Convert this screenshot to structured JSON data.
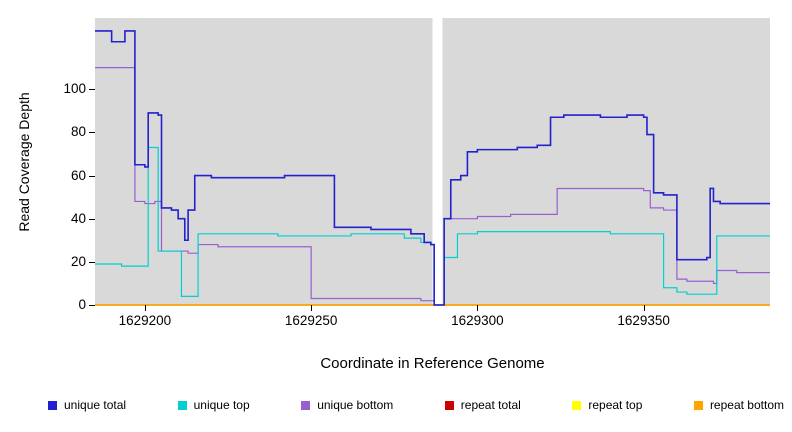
{
  "chart_data": {
    "type": "line",
    "subtype": "step",
    "title": "",
    "xlabel": "Coordinate in Reference Genome",
    "ylabel": "Read Coverage Depth",
    "xlim": [
      1629185,
      1629388
    ],
    "ylim": [
      0,
      133
    ],
    "x_ticks": [
      1629200,
      1629250,
      1629300,
      1629350
    ],
    "y_ticks": [
      0,
      20,
      40,
      60,
      80,
      100
    ],
    "plot_bg": "#d9d9d9",
    "grid": false,
    "gap_region": [
      1629286.5,
      1629289.5
    ],
    "legend_position": "bottom",
    "series": [
      {
        "name": "repeat total",
        "color": "#cc0000",
        "width": 1.2,
        "points": [
          [
            1629185,
            0
          ],
          [
            1629388,
            0
          ]
        ]
      },
      {
        "name": "repeat top",
        "color": "#ffff00",
        "width": 1.2,
        "points": [
          [
            1629185,
            0
          ],
          [
            1629388,
            0
          ]
        ]
      },
      {
        "name": "repeat bottom",
        "color": "#ffa500",
        "width": 1.5,
        "points": [
          [
            1629185,
            0
          ],
          [
            1629388,
            0
          ]
        ]
      },
      {
        "name": "unique bottom",
        "color": "#9a5fce",
        "width": 1.2,
        "points": [
          [
            1629185,
            110
          ],
          [
            1629197,
            48
          ],
          [
            1629200,
            47
          ],
          [
            1629203,
            48
          ],
          [
            1629205,
            25
          ],
          [
            1629213,
            24
          ],
          [
            1629216,
            28
          ],
          [
            1629222,
            27
          ],
          [
            1629249,
            27
          ],
          [
            1629250,
            3
          ],
          [
            1629270,
            3
          ],
          [
            1629283,
            2
          ],
          [
            1629287,
            0
          ],
          [
            1629289,
            0
          ],
          [
            1629290,
            40
          ],
          [
            1629296,
            40
          ],
          [
            1629300,
            41
          ],
          [
            1629310,
            42
          ],
          [
            1629322,
            42
          ],
          [
            1629324,
            54
          ],
          [
            1629340,
            54
          ],
          [
            1629350,
            53
          ],
          [
            1629352,
            45
          ],
          [
            1629356,
            44
          ],
          [
            1629360,
            12
          ],
          [
            1629363,
            11
          ],
          [
            1629371,
            10
          ],
          [
            1629372,
            16
          ],
          [
            1629378,
            15
          ],
          [
            1629388,
            15
          ]
        ]
      },
      {
        "name": "unique top",
        "color": "#00d0d0",
        "width": 1.2,
        "points": [
          [
            1629185,
            19
          ],
          [
            1629193,
            18
          ],
          [
            1629201,
            73
          ],
          [
            1629204,
            25
          ],
          [
            1629211,
            4
          ],
          [
            1629216,
            33
          ],
          [
            1629240,
            32
          ],
          [
            1629262,
            33
          ],
          [
            1629278,
            31
          ],
          [
            1629283,
            29
          ],
          [
            1629286,
            28
          ],
          [
            1629287,
            0
          ],
          [
            1629289,
            0
          ],
          [
            1629290,
            22
          ],
          [
            1629294,
            33
          ],
          [
            1629300,
            34
          ],
          [
            1629330,
            34
          ],
          [
            1629340,
            33
          ],
          [
            1629352,
            33
          ],
          [
            1629356,
            8
          ],
          [
            1629360,
            6
          ],
          [
            1629363,
            5
          ],
          [
            1629371,
            5
          ],
          [
            1629372,
            32
          ],
          [
            1629388,
            32
          ]
        ]
      },
      {
        "name": "unique total",
        "color": "#2222cc",
        "width": 1.6,
        "points": [
          [
            1629185,
            127
          ],
          [
            1629190,
            122
          ],
          [
            1629194,
            127
          ],
          [
            1629197,
            65
          ],
          [
            1629200,
            64
          ],
          [
            1629201,
            89
          ],
          [
            1629204,
            88
          ],
          [
            1629205,
            45
          ],
          [
            1629208,
            44
          ],
          [
            1629210,
            40
          ],
          [
            1629212,
            30
          ],
          [
            1629213,
            44
          ],
          [
            1629215,
            60
          ],
          [
            1629220,
            59
          ],
          [
            1629242,
            60
          ],
          [
            1629257,
            36
          ],
          [
            1629268,
            35
          ],
          [
            1629280,
            33
          ],
          [
            1629284,
            29
          ],
          [
            1629286,
            28
          ],
          [
            1629287,
            0
          ],
          [
            1629289,
            0
          ],
          [
            1629290,
            40
          ],
          [
            1629292,
            58
          ],
          [
            1629295,
            60
          ],
          [
            1629297,
            71
          ],
          [
            1629300,
            72
          ],
          [
            1629308,
            72
          ],
          [
            1629312,
            73
          ],
          [
            1629318,
            74
          ],
          [
            1629322,
            87
          ],
          [
            1629326,
            88
          ],
          [
            1629337,
            87
          ],
          [
            1629345,
            88
          ],
          [
            1629350,
            87
          ],
          [
            1629351,
            79
          ],
          [
            1629353,
            52
          ],
          [
            1629356,
            51
          ],
          [
            1629360,
            21
          ],
          [
            1629369,
            22
          ],
          [
            1629370,
            54
          ],
          [
            1629371,
            48
          ],
          [
            1629373,
            47
          ],
          [
            1629388,
            47
          ]
        ]
      }
    ],
    "legend": [
      {
        "label": "unique total",
        "color": "#2222cc"
      },
      {
        "label": "unique top",
        "color": "#00d0d0"
      },
      {
        "label": "unique bottom",
        "color": "#9a5fce"
      },
      {
        "label": "repeat total",
        "color": "#cc0000"
      },
      {
        "label": "repeat top",
        "color": "#ffff00"
      },
      {
        "label": "repeat bottom",
        "color": "#ffa500"
      }
    ]
  }
}
